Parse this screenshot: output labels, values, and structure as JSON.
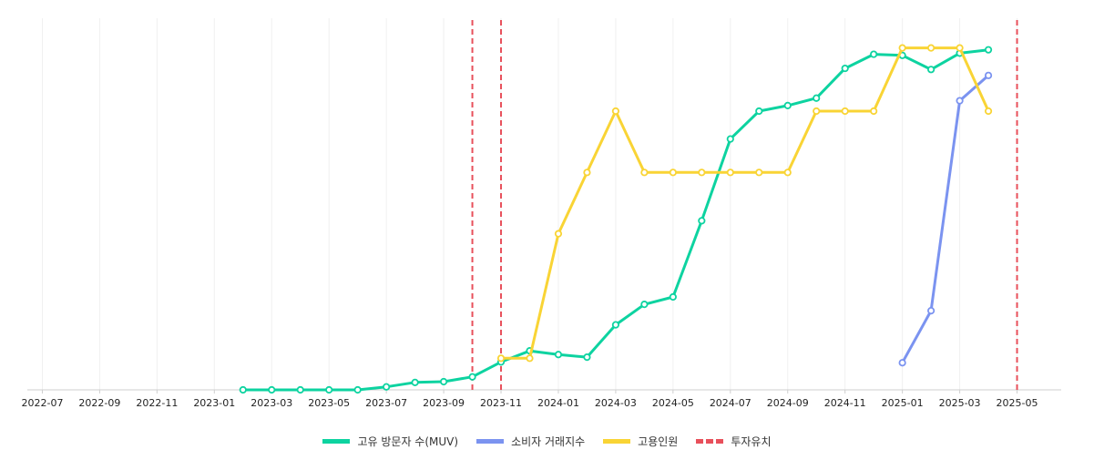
{
  "chart_data": {
    "type": "line",
    "xlabel": "",
    "ylabel": "",
    "x_ticks": [
      "2022-07",
      "2022-09",
      "2022-11",
      "2023-01",
      "2023-03",
      "2023-05",
      "2023-07",
      "2023-09",
      "2023-11",
      "2024-01",
      "2024-03",
      "2024-05",
      "2024-07",
      "2024-09",
      "2024-11",
      "2025-01",
      "2025-03",
      "2025-05"
    ],
    "x_range": [
      "2022-06",
      "2025-06"
    ],
    "y_range": [
      0,
      100
    ],
    "grid": true,
    "legend_position": "bottom",
    "series": [
      {
        "name": "고유 방문자 수(MUV)",
        "color": "#0dd3a0",
        "points": [
          [
            "2023-02",
            0
          ],
          [
            "2023-03",
            0
          ],
          [
            "2023-04",
            0
          ],
          [
            "2023-05",
            0
          ],
          [
            "2023-06",
            0
          ],
          [
            "2023-07",
            0.8
          ],
          [
            "2023-08",
            2
          ],
          [
            "2023-09",
            2.2
          ],
          [
            "2023-10",
            3.5
          ],
          [
            "2023-11",
            7.5
          ],
          [
            "2023-12",
            10.5
          ],
          [
            "2024-01",
            9.5
          ],
          [
            "2024-02",
            8.8
          ],
          [
            "2024-03",
            17.5
          ],
          [
            "2024-04",
            23
          ],
          [
            "2024-05",
            25
          ],
          [
            "2024-06",
            45.5
          ],
          [
            "2024-07",
            67.5
          ],
          [
            "2024-08",
            75
          ],
          [
            "2024-09",
            76.5
          ],
          [
            "2024-10",
            78.5
          ],
          [
            "2024-11",
            86.5
          ],
          [
            "2024-12",
            90.3
          ],
          [
            "2025-01",
            90
          ],
          [
            "2025-02",
            86.2
          ],
          [
            "2025-03",
            90.6
          ],
          [
            "2025-04",
            91.5
          ]
        ]
      },
      {
        "name": "소비자 거래지수",
        "color": "#7b93f0",
        "points": [
          [
            "2025-01",
            7.3
          ],
          [
            "2025-02",
            21.3
          ],
          [
            "2025-03",
            77.8
          ],
          [
            "2025-04",
            84.6
          ]
        ]
      },
      {
        "name": "고용인원",
        "color": "#f9d435",
        "points": [
          [
            "2023-11",
            8.5
          ],
          [
            "2023-12",
            8.5
          ],
          [
            "2024-01",
            42
          ],
          [
            "2024-02",
            58.5
          ],
          [
            "2024-03",
            75
          ],
          [
            "2024-04",
            58.5
          ],
          [
            "2024-05",
            58.5
          ],
          [
            "2024-06",
            58.5
          ],
          [
            "2024-07",
            58.5
          ],
          [
            "2024-08",
            58.5
          ],
          [
            "2024-09",
            58.5
          ],
          [
            "2024-10",
            75
          ],
          [
            "2024-11",
            75
          ],
          [
            "2024-12",
            75
          ],
          [
            "2025-01",
            92
          ],
          [
            "2025-02",
            92
          ],
          [
            "2025-03",
            92
          ],
          [
            "2025-04",
            75
          ]
        ]
      }
    ],
    "investment_lines": {
      "name": "투자유치",
      "color": "#e8505b",
      "dates": [
        "2023-10",
        "2023-11",
        "2025-05"
      ]
    }
  }
}
